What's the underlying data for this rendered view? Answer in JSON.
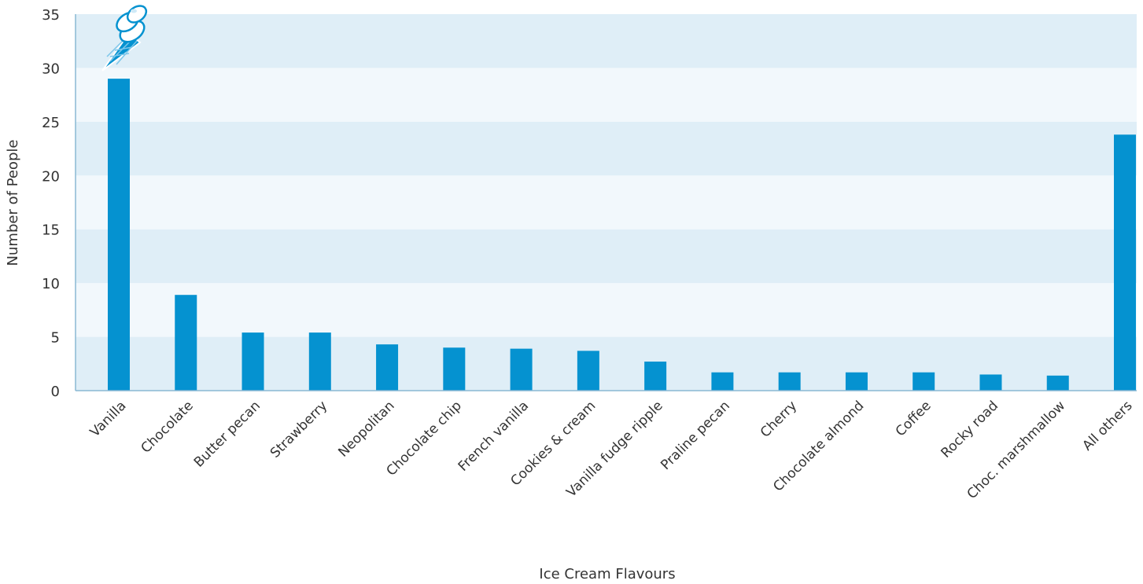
{
  "chart_data": {
    "type": "bar",
    "title": "",
    "xlabel": "Ice Cream Flavours",
    "ylabel": "Number of People",
    "ylim": [
      0,
      35
    ],
    "yticks": [
      0,
      5,
      10,
      15,
      20,
      25,
      30,
      35
    ],
    "grid": "alternating horizontal bands",
    "categories": [
      "Vanilla",
      "Chocolate",
      "Butter pecan",
      "Strawberry",
      "Neopolitan",
      "Chocolate chip",
      "French vanilla",
      "Cookies & cream",
      "Vanilla fudge ripple",
      "Praline pecan",
      "Cherry",
      "Chocolate almond",
      "Coffee",
      "Rocky road",
      "Choc. marshmallow",
      "All others"
    ],
    "values": [
      29,
      8.9,
      5.4,
      5.4,
      4.3,
      4.0,
      3.9,
      3.7,
      2.7,
      1.7,
      1.7,
      1.7,
      1.7,
      1.5,
      1.4,
      23.8
    ],
    "colors": {
      "bar": "#0592d0",
      "band_dark": "#dfeef7",
      "band_light": "#f2f8fc",
      "axis": "#8ab8d4"
    },
    "icon": "ice-cream-cone-icon"
  }
}
